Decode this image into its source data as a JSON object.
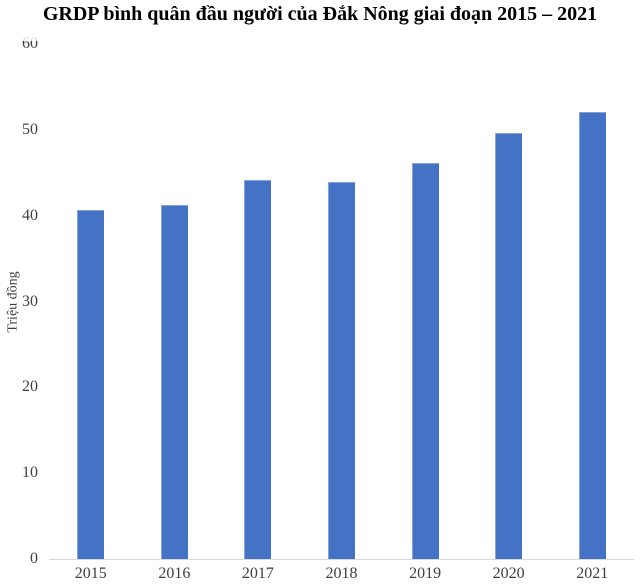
{
  "title": "GRDP bình quân đầu người của Đắk Nông giai đoạn 2015 – 2021",
  "colors": {
    "bar": "#4472C4",
    "axis_line": "#D9D9D9",
    "tick_text": "#3F3F3F",
    "title_text": "#000000",
    "background": "#FFFFFF"
  },
  "chart_data": {
    "type": "bar",
    "title": "GRDP bình quân đầu người của Đắk Nông giai đoạn 2015 – 2021",
    "categories": [
      "2015",
      "2016",
      "2017",
      "2018",
      "2019",
      "2020",
      "2021"
    ],
    "values": [
      40.7,
      41.3,
      44.2,
      44.0,
      46.2,
      49.7,
      52.1
    ],
    "xlabel": "",
    "ylabel": "Triệu đồng",
    "ylim": [
      0,
      60
    ],
    "yticks": [
      0,
      10,
      20,
      30,
      40,
      50,
      60
    ],
    "grid": false,
    "legend_position": "none"
  }
}
